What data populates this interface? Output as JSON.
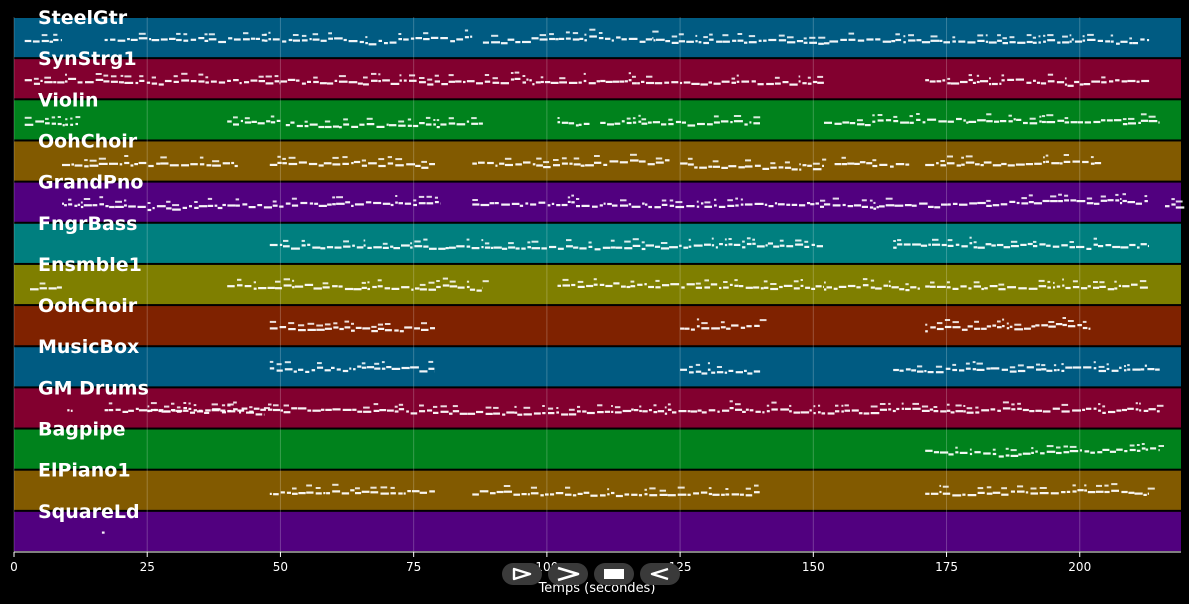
{
  "chart_data": {
    "type": "piano-roll",
    "xlabel": "Temps (secondes)",
    "xlim": [
      0,
      219
    ],
    "xticks": [
      0,
      25,
      50,
      75,
      100,
      125,
      150,
      175,
      200
    ],
    "grid": true,
    "tracks": [
      {
        "name": "SteelGtr",
        "color": "#005b82",
        "segments": [
          [
            2,
            9
          ],
          [
            17,
            47
          ],
          [
            47,
            86
          ],
          [
            88,
            120
          ],
          [
            120,
            152
          ],
          [
            152,
            172
          ],
          [
            172,
            213
          ]
        ]
      },
      {
        "name": "SynStrg1",
        "color": "#82002f",
        "segments": [
          [
            2,
            20
          ],
          [
            20,
            50
          ],
          [
            50,
            85
          ],
          [
            85,
            110
          ],
          [
            110,
            152
          ],
          [
            171,
            213
          ]
        ]
      },
      {
        "name": "Violin",
        "color": "#00821c",
        "segments": [
          [
            2,
            12
          ],
          [
            40,
            50
          ],
          [
            51,
            88
          ],
          [
            102,
            108
          ],
          [
            110,
            140
          ],
          [
            152,
            215
          ]
        ]
      },
      {
        "name": "OohChoir",
        "color": "#825a00",
        "segments": [
          [
            9,
            42
          ],
          [
            48,
            79
          ],
          [
            86,
            123
          ],
          [
            125,
            152
          ],
          [
            154,
            168
          ],
          [
            171,
            204
          ]
        ]
      },
      {
        "name": "GrandPno",
        "color": "#51007f",
        "segments": [
          [
            9,
            80
          ],
          [
            86,
            152
          ],
          [
            152,
            213
          ],
          [
            216,
            220
          ]
        ]
      },
      {
        "name": "FngrBass",
        "color": "#007f7f",
        "segments": [
          [
            48,
            152
          ],
          [
            165,
            213
          ]
        ]
      },
      {
        "name": "Ensmble1",
        "color": "#7f7f00",
        "segments": [
          [
            3,
            9
          ],
          [
            40,
            88
          ],
          [
            102,
            152
          ],
          [
            152,
            170
          ],
          [
            171,
            213
          ]
        ]
      },
      {
        "name": "OohChoir",
        "color": "#7f2200",
        "segments": [
          [
            48,
            79
          ],
          [
            125,
            140
          ],
          [
            171,
            202
          ]
        ]
      },
      {
        "name": "MusicBox",
        "color": "#005b82",
        "segments": [
          [
            48,
            79
          ],
          [
            125,
            140
          ],
          [
            165,
            215
          ]
        ]
      },
      {
        "name": "GM Drums",
        "color": "#82002f",
        "segments": [
          [
            10,
            11
          ],
          [
            17,
            47
          ],
          [
            25,
            215
          ]
        ]
      },
      {
        "name": "Bagpipe",
        "color": "#00821c",
        "segments": [
          [
            171,
            215
          ]
        ]
      },
      {
        "name": "ElPiano1",
        "color": "#825a00",
        "segments": [
          [
            48,
            79
          ],
          [
            86,
            140
          ],
          [
            171,
            213
          ]
        ]
      },
      {
        "name": "SquareLd",
        "color": "#51007f",
        "segments": [
          [
            16.5,
            17
          ]
        ]
      }
    ]
  },
  "controls": [
    {
      "name": "play-outline-icon"
    },
    {
      "name": "chevron-right-icon"
    },
    {
      "name": "stop-icon"
    },
    {
      "name": "rewind-icon"
    }
  ]
}
